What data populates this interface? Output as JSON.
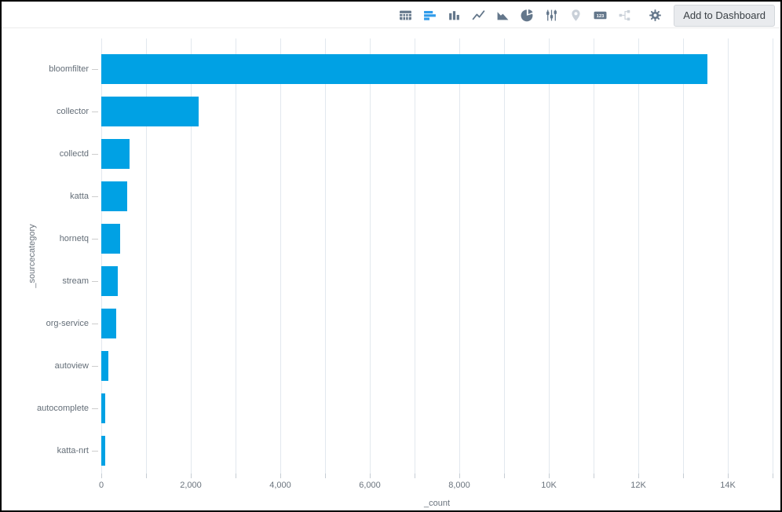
{
  "toolbar": {
    "add_to_dashboard_label": "Add to Dashboard",
    "icons": [
      {
        "name": "table-icon",
        "state": "normal"
      },
      {
        "name": "horizontal-bar-chart-icon",
        "state": "active"
      },
      {
        "name": "column-chart-icon",
        "state": "normal"
      },
      {
        "name": "line-chart-icon",
        "state": "normal"
      },
      {
        "name": "area-chart-icon",
        "state": "normal"
      },
      {
        "name": "pie-chart-icon",
        "state": "normal"
      },
      {
        "name": "sliders-icon",
        "state": "normal"
      },
      {
        "name": "map-pin-icon",
        "state": "disabled"
      },
      {
        "name": "numbers-123-icon",
        "state": "normal",
        "text": "123"
      },
      {
        "name": "flow-icon",
        "state": "disabled"
      },
      {
        "name": "gear-icon",
        "state": "normal"
      }
    ]
  },
  "chart_data": {
    "type": "bar",
    "orientation": "horizontal",
    "title": "",
    "xlabel": "_count",
    "ylabel": "_sourcecategory",
    "categories": [
      "bloomfilter",
      "collector",
      "collectd",
      "katta",
      "hornetq",
      "stream",
      "org-service",
      "autoview",
      "autocomplete",
      "katta-nrt"
    ],
    "values": [
      13550,
      2170,
      640,
      580,
      420,
      375,
      330,
      160,
      95,
      85
    ],
    "xlim": [
      0,
      15000
    ],
    "x_major_ticks": [
      0,
      2000,
      4000,
      6000,
      8000,
      10000,
      12000,
      14000
    ],
    "x_tick_labels": [
      "0",
      "2,000",
      "4,000",
      "6,000",
      "8,000",
      "10K",
      "12K",
      "14K"
    ],
    "x_minor_step": 1000,
    "grid": true,
    "legend": false,
    "bar_color": "#00A1E4"
  },
  "colors": {
    "bar_blue": "#00A1E4",
    "icon_active_blue": "#2F9BEA",
    "icon_normal": "#64778B",
    "icon_disabled": "#C9D0D8",
    "gridline": "#E2E8EE",
    "axis_text": "#6A737D"
  }
}
